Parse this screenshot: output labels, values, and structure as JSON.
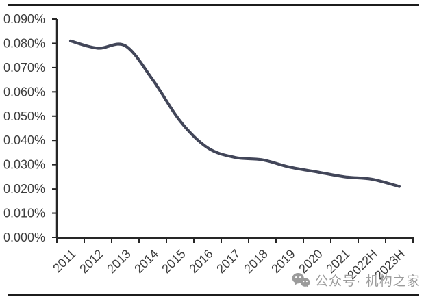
{
  "chart_data": {
    "type": "line",
    "title": "",
    "categories": [
      "2011",
      "2012",
      "2013",
      "2014",
      "2015",
      "2016",
      "2017",
      "2018",
      "2019",
      "2020",
      "2021",
      "2022H",
      "2023H"
    ],
    "series": [
      {
        "name": "",
        "values": [
          0.081,
          0.078,
          0.079,
          0.065,
          0.048,
          0.037,
          0.033,
          0.032,
          0.029,
          0.027,
          0.025,
          0.024,
          0.021
        ]
      }
    ],
    "unit": "%",
    "ylim": [
      0,
      0.09
    ],
    "y_tick_step": 0.01,
    "y_tick_labels": [
      "0.000%",
      "0.010%",
      "0.020%",
      "0.030%",
      "0.040%",
      "0.050%",
      "0.060%",
      "0.070%",
      "0.080%",
      "0.090%"
    ],
    "xlabel": "",
    "ylabel": "",
    "grid": false,
    "legend_position": "none",
    "smooth": true
  },
  "watermark": {
    "icon": "wechat-icon",
    "text": "公众号· 机构之家"
  },
  "colors": {
    "line": "#424659",
    "axis": "#262626",
    "tick_label": "#3d3d3d",
    "watermark_gray": "#9b9b9b",
    "border_rule": "#1c1c1c",
    "background": "#ffffff"
  }
}
